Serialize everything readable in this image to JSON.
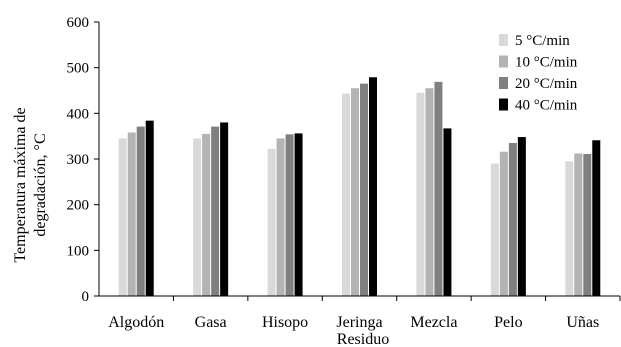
{
  "chart_data": {
    "type": "bar",
    "title": "",
    "ylabel_lines": [
      "Temperatura máxima de",
      "degradación, °C"
    ],
    "xlabel": "Residuo",
    "ylim": [
      0,
      600
    ],
    "yticks": [
      0,
      100,
      200,
      300,
      400,
      500,
      600
    ],
    "grid": false,
    "legend_position": "top-right",
    "categories": [
      "Algodón",
      "Gasa",
      "Hisopo",
      "Jeringa",
      "Mezcla",
      "Pelo",
      "Uñas"
    ],
    "series": [
      {
        "name": "5 °C/min",
        "color": "#d9d9d9",
        "values": [
          345,
          345,
          322,
          443,
          445,
          290,
          295
        ]
      },
      {
        "name": "10 °C/min",
        "color": "#b3b3b3",
        "values": [
          358,
          355,
          345,
          455,
          455,
          316,
          312
        ]
      },
      {
        "name": "20 °C/min",
        "color": "#808080",
        "values": [
          371,
          371,
          354,
          465,
          469,
          335,
          311
        ]
      },
      {
        "name": "40 °C/min",
        "color": "#000000",
        "values": [
          384,
          380,
          356,
          479,
          367,
          348,
          341
        ]
      }
    ]
  }
}
